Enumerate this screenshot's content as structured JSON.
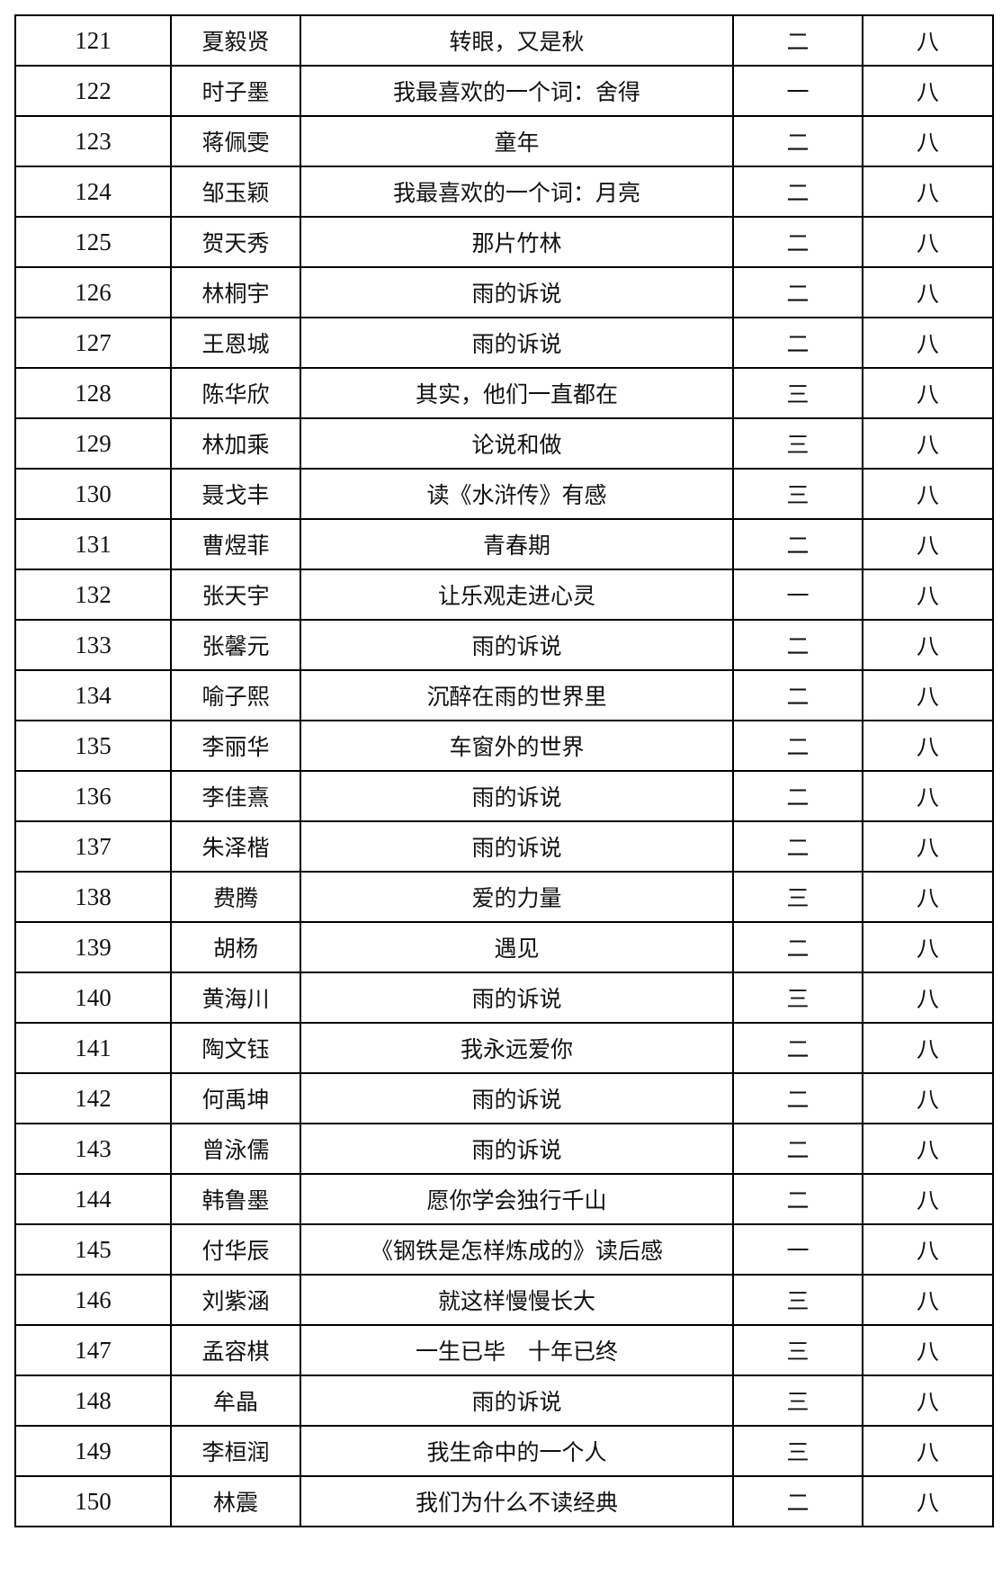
{
  "rows": [
    {
      "no": "121",
      "name": "夏毅贤",
      "title": "转眼，又是秋",
      "level": "二",
      "grade": "八"
    },
    {
      "no": "122",
      "name": "时子墨",
      "title": "我最喜欢的一个词：舍得",
      "level": "一",
      "grade": "八"
    },
    {
      "no": "123",
      "name": "蒋佩雯",
      "title": "童年",
      "level": "二",
      "grade": "八"
    },
    {
      "no": "124",
      "name": "邹玉颖",
      "title": "我最喜欢的一个词：月亮",
      "level": "二",
      "grade": "八"
    },
    {
      "no": "125",
      "name": "贺天秀",
      "title": "那片竹林",
      "level": "二",
      "grade": "八"
    },
    {
      "no": "126",
      "name": "林桐宇",
      "title": "雨的诉说",
      "level": "二",
      "grade": "八"
    },
    {
      "no": "127",
      "name": "王恩城",
      "title": "雨的诉说",
      "level": "二",
      "grade": "八"
    },
    {
      "no": "128",
      "name": "陈华欣",
      "title": "其实，他们一直都在",
      "level": "三",
      "grade": "八"
    },
    {
      "no": "129",
      "name": "林加乘",
      "title": "论说和做",
      "level": "三",
      "grade": "八"
    },
    {
      "no": "130",
      "name": "聂戈丰",
      "title": "读《水浒传》有感",
      "level": "三",
      "grade": "八"
    },
    {
      "no": "131",
      "name": "曹煜菲",
      "title": "青春期",
      "level": "二",
      "grade": "八"
    },
    {
      "no": "132",
      "name": "张天宇",
      "title": "让乐观走进心灵",
      "level": "一",
      "grade": "八"
    },
    {
      "no": "133",
      "name": "张馨元",
      "title": "雨的诉说",
      "level": "二",
      "grade": "八"
    },
    {
      "no": "134",
      "name": "喻子熙",
      "title": "沉醉在雨的世界里",
      "level": "二",
      "grade": "八"
    },
    {
      "no": "135",
      "name": "李丽华",
      "title": "车窗外的世界",
      "level": "二",
      "grade": "八"
    },
    {
      "no": "136",
      "name": "李佳熹",
      "title": "雨的诉说",
      "level": "二",
      "grade": "八"
    },
    {
      "no": "137",
      "name": "朱泽楷",
      "title": "雨的诉说",
      "level": "二",
      "grade": "八"
    },
    {
      "no": "138",
      "name": "费腾",
      "title": "爱的力量",
      "level": "三",
      "grade": "八"
    },
    {
      "no": "139",
      "name": "胡杨",
      "title": "遇见",
      "level": "二",
      "grade": "八"
    },
    {
      "no": "140",
      "name": "黄海川",
      "title": "雨的诉说",
      "level": "三",
      "grade": "八"
    },
    {
      "no": "141",
      "name": "陶文钰",
      "title": "我永远爱你",
      "level": "二",
      "grade": "八"
    },
    {
      "no": "142",
      "name": "何禹坤",
      "title": "雨的诉说",
      "level": "二",
      "grade": "八"
    },
    {
      "no": "143",
      "name": "曾泳儒",
      "title": "雨的诉说",
      "level": "二",
      "grade": "八"
    },
    {
      "no": "144",
      "name": "韩鲁墨",
      "title": "愿你学会独行千山",
      "level": "二",
      "grade": "八"
    },
    {
      "no": "145",
      "name": "付华辰",
      "title": "《钢铁是怎样炼成的》读后感",
      "level": "一",
      "grade": "八"
    },
    {
      "no": "146",
      "name": "刘紫涵",
      "title": "就这样慢慢长大",
      "level": "三",
      "grade": "八"
    },
    {
      "no": "147",
      "name": "孟容棋",
      "title": "一生已毕　十年已终",
      "level": "三",
      "grade": "八"
    },
    {
      "no": "148",
      "name": "牟晶",
      "title": "雨的诉说",
      "level": "三",
      "grade": "八"
    },
    {
      "no": "149",
      "name": "李桓润",
      "title": "我生命中的一个人",
      "level": "三",
      "grade": "八"
    },
    {
      "no": "150",
      "name": "林震",
      "title": "我们为什么不读经典",
      "level": "二",
      "grade": "八"
    }
  ]
}
